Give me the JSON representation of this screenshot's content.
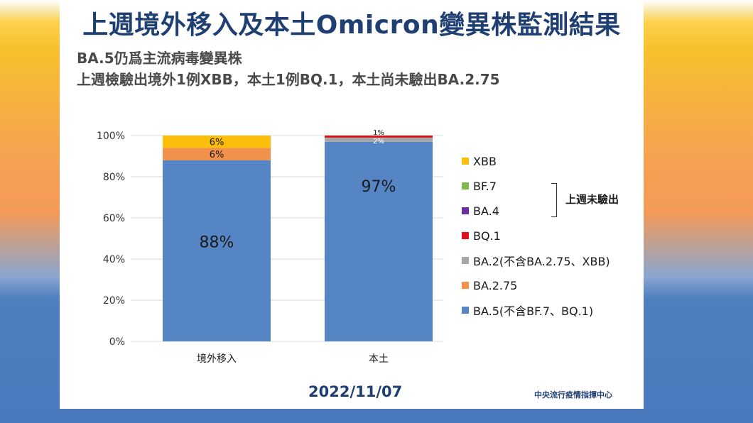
{
  "page": {
    "title": "上週境外移入及本土Omicron變異株監測結果",
    "subtitle_line1": "BA.5仍爲主流病毒變異株",
    "subtitle_line2": "上週檢驗出境外1例XBB，本土1例BQ.1，本土尚未驗出BA.2.75",
    "date": "2022/11/07",
    "source": "中央流行疫情指揮中心",
    "bracket_label": "上週未驗出"
  },
  "colors": {
    "title": "#1f3f73",
    "BA.5": "#5585c5",
    "BA.2.75": "#f2914b",
    "BA.2": "#a6a6a6",
    "BQ.1": "#e0101a",
    "BA.4": "#6a2fa0",
    "BF.7": "#7fba4a",
    "XBB": "#fbbf0b"
  },
  "chart_data": {
    "type": "bar",
    "stacked": true,
    "categories": [
      "境外移入",
      "本土"
    ],
    "y_tick_labels": [
      "0%",
      "20%",
      "40%",
      "60%",
      "80%",
      "100%"
    ],
    "ylim": [
      0,
      100
    ],
    "grid": true,
    "legend_position": "right",
    "series": [
      {
        "name": "BA.5(不含BF.7、BQ.1)",
        "values": [
          88,
          97
        ],
        "labels": [
          "88%",
          "97%"
        ]
      },
      {
        "name": "BA.2.75",
        "values": [
          6,
          0
        ],
        "labels": [
          "6%",
          ""
        ]
      },
      {
        "name": "BA.2(不含BA.2.75、XBB)",
        "values": [
          0,
          2
        ],
        "labels": [
          "",
          "2%"
        ]
      },
      {
        "name": "BQ.1",
        "values": [
          0,
          1
        ],
        "labels": [
          "",
          "1%"
        ]
      },
      {
        "name": "BA.4",
        "values": [
          0,
          0
        ],
        "labels": [
          "",
          ""
        ]
      },
      {
        "name": "BF.7",
        "values": [
          0,
          0
        ],
        "labels": [
          "",
          ""
        ]
      },
      {
        "name": "XBB",
        "values": [
          6,
          0
        ],
        "labels": [
          "6%",
          ""
        ]
      }
    ],
    "legend_order": [
      "XBB",
      "BF.7",
      "BA.4",
      "BQ.1",
      "BA.2(不含BA.2.75、XBB)",
      "BA.2.75",
      "BA.5(不含BF.7、BQ.1)"
    ]
  }
}
